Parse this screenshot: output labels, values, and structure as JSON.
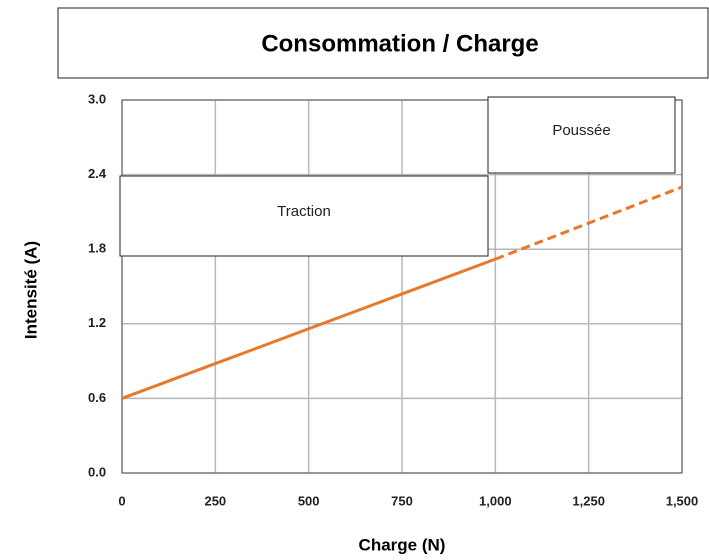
{
  "chart_data": {
    "type": "line",
    "title": "Consommation / Charge",
    "x_label": "Charge (N)",
    "y_label": "Intensité (A)",
    "series": [
      {
        "color": "#e8782a",
        "style": "solid",
        "x": [
          0,
          250,
          500,
          750,
          1000
        ],
        "values": [
          0.6,
          0.88,
          1.16,
          1.44,
          1.72
        ]
      },
      {
        "color": "#e8782a",
        "style": "dashed",
        "x": [
          1000,
          1250,
          1500
        ],
        "values": [
          1.72,
          2.01,
          2.3
        ]
      }
    ],
    "annotations": [
      "Traction",
      "Poussée"
    ],
    "xlim": [
      0,
      1500
    ],
    "xticks": [
      0,
      250,
      500,
      750,
      {
        "value": 1000,
        "label": "1,000"
      },
      {
        "value": 1250,
        "label": "1,250"
      },
      {
        "value": 1500,
        "label": "1,500"
      }
    ],
    "ylim": [
      0,
      3
    ],
    "yticks": [
      {
        "value": 0,
        "label": "0.0"
      },
      0.6,
      1.2,
      1.8,
      2.4,
      {
        "value": 3,
        "label": "3.0"
      }
    ],
    "grid": true
  }
}
